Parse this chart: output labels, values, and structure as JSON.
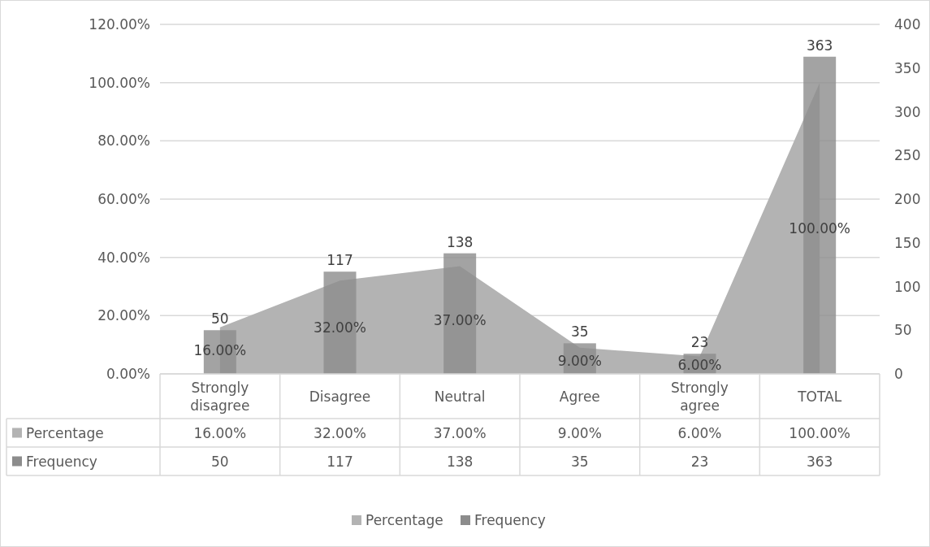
{
  "chart_data": {
    "type": "bar",
    "categories": [
      "Strongly disagree",
      "Disagree",
      "Neutral",
      "Agree",
      "Strongly agree",
      "TOTAL"
    ],
    "series": [
      {
        "name": "Percentage",
        "type": "area",
        "color": "#b3b3b3",
        "values": [
          16,
          32,
          37,
          9,
          6,
          100
        ],
        "value_labels": [
          "16.00%",
          "32.00%",
          "37.00%",
          "9.00%",
          "6.00%",
          "100.00%"
        ]
      },
      {
        "name": "Frequency",
        "axis": "y2",
        "color": "#8c8c8c",
        "values": [
          50,
          117,
          138,
          35,
          23,
          363
        ],
        "value_labels": [
          "50",
          "117",
          "138",
          "35",
          "23",
          "363"
        ]
      }
    ],
    "ylim": [
      0,
      120
    ],
    "yticks": [
      {
        "value": 0,
        "label": "0.00%"
      },
      {
        "value": 20,
        "label": "20.00%"
      },
      {
        "value": 40,
        "label": "40.00%"
      },
      {
        "value": 60,
        "label": "60.00%"
      },
      {
        "value": 80,
        "label": "80.00%"
      },
      {
        "value": 100,
        "label": "100.00%"
      },
      {
        "value": 120,
        "label": "120.00%"
      }
    ],
    "y2lim": [
      0,
      400
    ],
    "y2ticks": [
      0,
      50,
      100,
      150,
      200,
      250,
      300,
      350,
      400
    ],
    "grid": "y",
    "legend": "bottom"
  }
}
